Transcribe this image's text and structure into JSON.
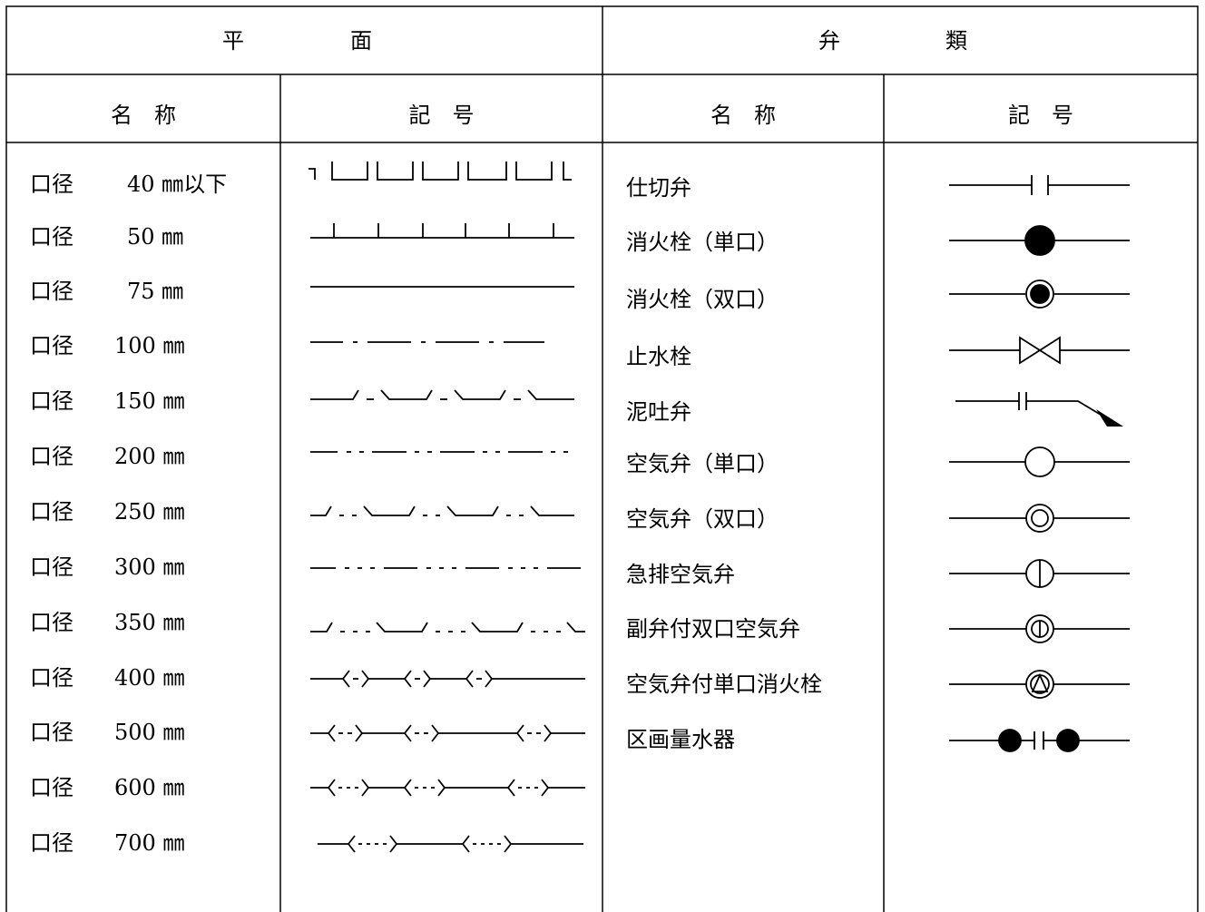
{
  "header": {
    "plan": [
      "平",
      "面"
    ],
    "valves": [
      "弁",
      "類"
    ]
  },
  "subheader": {
    "plan_name": "名　称",
    "plan_symbol": "記　号",
    "valve_name": "名　称",
    "valve_symbol": "記　号"
  },
  "pipes": [
    {
      "label": "口径",
      "size": "40 ㎜以下",
      "symbol": "pipe-40-icon"
    },
    {
      "label": "口径",
      "size": "50 ㎜",
      "symbol": "pipe-50-icon"
    },
    {
      "label": "口径",
      "size": "75 ㎜",
      "symbol": "pipe-75-icon"
    },
    {
      "label": "口径",
      "size": "100 ㎜",
      "symbol": "pipe-100-icon"
    },
    {
      "label": "口径",
      "size": "150 ㎜",
      "symbol": "pipe-150-icon"
    },
    {
      "label": "口径",
      "size": "200 ㎜",
      "symbol": "pipe-200-icon"
    },
    {
      "label": "口径",
      "size": "250 ㎜",
      "symbol": "pipe-250-icon"
    },
    {
      "label": "口径",
      "size": "300 ㎜",
      "symbol": "pipe-300-icon"
    },
    {
      "label": "口径",
      "size": "350 ㎜",
      "symbol": "pipe-350-icon"
    },
    {
      "label": "口径",
      "size": "400 ㎜",
      "symbol": "pipe-400-icon"
    },
    {
      "label": "口径",
      "size": "500 ㎜",
      "symbol": "pipe-500-icon"
    },
    {
      "label": "口径",
      "size": "600 ㎜",
      "symbol": "pipe-600-icon"
    },
    {
      "label": "口径",
      "size": "700 ㎜",
      "symbol": "pipe-700-icon"
    }
  ],
  "valves": [
    {
      "name": "仕切弁",
      "symbol": "gate-valve-icon"
    },
    {
      "name": "消火栓（単口）",
      "symbol": "single-hydrant-icon"
    },
    {
      "name": "消火栓（双口）",
      "symbol": "double-hydrant-icon"
    },
    {
      "name": "止水栓",
      "symbol": "stop-valve-icon"
    },
    {
      "name": "泥吐弁",
      "symbol": "drain-valve-icon"
    },
    {
      "name": "空気弁（単口）",
      "symbol": "single-air-valve-icon"
    },
    {
      "name": "空気弁（双口）",
      "symbol": "double-air-valve-icon"
    },
    {
      "name": "急排空気弁",
      "symbol": "rapid-air-valve-icon"
    },
    {
      "name": "副弁付双口空気弁",
      "symbol": "sub-valve-air-valve-icon"
    },
    {
      "name": "空気弁付単口消火栓",
      "symbol": "air-valve-hydrant-icon"
    },
    {
      "name": "区画量水器",
      "symbol": "district-meter-icon"
    }
  ]
}
